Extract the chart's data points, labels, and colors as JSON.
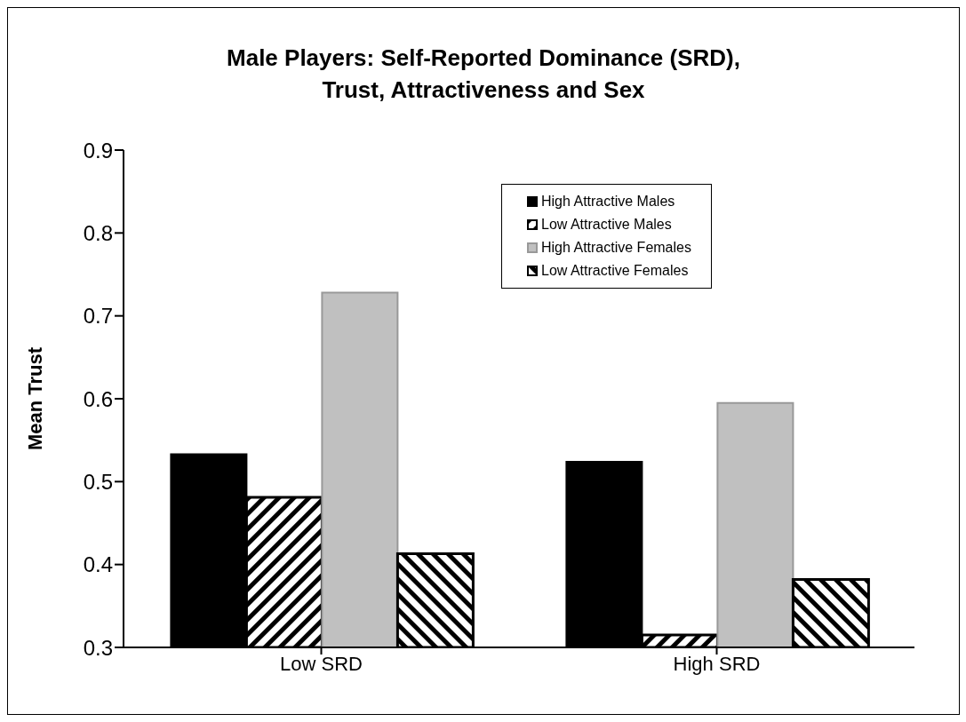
{
  "chart_data": {
    "type": "bar",
    "title": "Male Players: Self-Reported Dominance (SRD),\nTrust, Attractiveness and Sex",
    "ylabel": "Mean Trust",
    "categories": [
      "Low SRD",
      "High SRD"
    ],
    "series": [
      {
        "name": "High Attractive Males",
        "color": "#000000",
        "values": [
          0.533,
          0.524
        ]
      },
      {
        "name": "Low Attractive Males",
        "color": "#000000",
        "values": [
          0.481,
          0.315
        ]
      },
      {
        "name": "High Attractive Females",
        "color": "#c0c0c0",
        "values": [
          0.728,
          0.595
        ]
      },
      {
        "name": "Low Attractive Females",
        "color": "#000000",
        "values": [
          0.413,
          0.382
        ]
      }
    ],
    "ylim": [
      0.3,
      0.9
    ],
    "yticks": [
      0.3,
      0.4,
      0.5,
      0.6,
      0.7,
      0.8,
      0.9
    ],
    "grid": false,
    "legend": "top right"
  }
}
